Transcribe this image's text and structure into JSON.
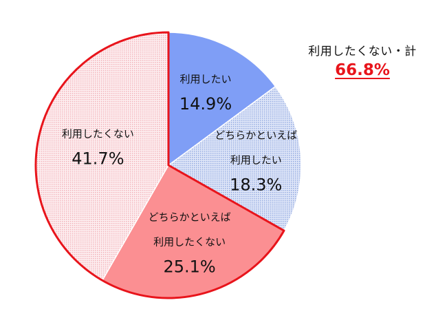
{
  "chart_data": {
    "type": "pie",
    "categories": [
      "利用したい",
      "どちらかといえば 利用したい",
      "どちらかといえば 利用したくない",
      "利用したくない"
    ],
    "series": [
      {
        "values": [
          14.9,
          18.3,
          25.1,
          41.7
        ]
      }
    ],
    "slices": [
      {
        "lines": [
          "利用したい"
        ],
        "value": 14.9,
        "value_text": "14.9%",
        "fill": "#7f9ef6",
        "pattern": "solid"
      },
      {
        "lines": [
          "どちらかといえば",
          "利用したい"
        ],
        "value": 18.3,
        "value_text": "18.3%",
        "fill": "#c5d2f3",
        "pattern": "dotted"
      },
      {
        "lines": [
          "どちらかといえば",
          "利用したくない"
        ],
        "value": 25.1,
        "value_text": "25.1%",
        "fill": "#fb8f92",
        "pattern": "solid"
      },
      {
        "lines": [
          "利用したくない"
        ],
        "value": 41.7,
        "value_text": "41.7%",
        "fill": "#fbd8dc",
        "pattern": "dotted"
      }
    ],
    "highlight_outline_color": "#e8141b",
    "start_angle": "12 o'clock",
    "direction": "clockwise"
  },
  "callout": {
    "label": "利用したくない・計",
    "value": "66.8%"
  }
}
